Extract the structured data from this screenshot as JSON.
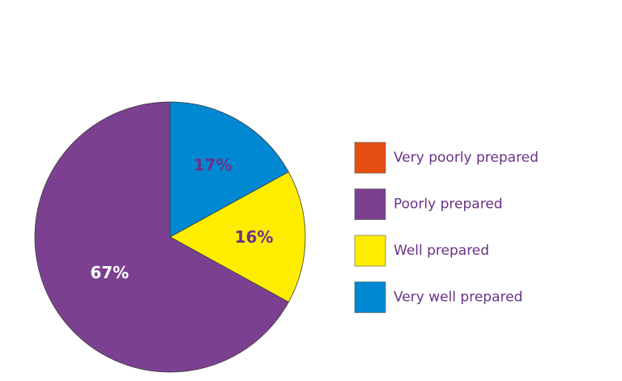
{
  "chart_data": {
    "type": "pie",
    "title": "",
    "categories": [
      "Very poorly prepared",
      "Poorly prepared",
      "Well prepared",
      "Very well prepared"
    ],
    "values": [
      0,
      67,
      16,
      17
    ],
    "value_labels": [
      "",
      "67%",
      "16%",
      "17%"
    ],
    "colors": [
      "#e54f12",
      "#7b4190",
      "#ffed00",
      "#0089d2"
    ],
    "label_colors": [
      "#ffffff",
      "#ffffff",
      "#6a3287",
      "#6a3287"
    ],
    "legend_text_color": "#6a3287",
    "legend_placement": "right",
    "start_angle_deg": 0,
    "direction": "clockwise"
  }
}
